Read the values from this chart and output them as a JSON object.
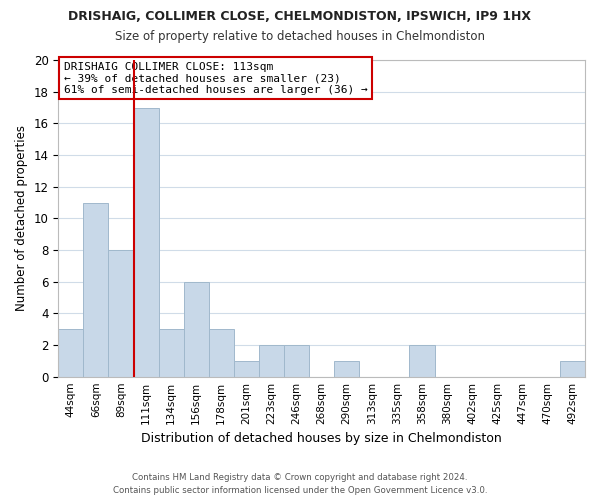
{
  "title1": "DRISHAIG, COLLIMER CLOSE, CHELMONDISTON, IPSWICH, IP9 1HX",
  "title2": "Size of property relative to detached houses in Chelmondiston",
  "xlabel": "Distribution of detached houses by size in Chelmondiston",
  "ylabel": "Number of detached properties",
  "bin_labels": [
    "44sqm",
    "66sqm",
    "89sqm",
    "111sqm",
    "134sqm",
    "156sqm",
    "178sqm",
    "201sqm",
    "223sqm",
    "246sqm",
    "268sqm",
    "290sqm",
    "313sqm",
    "335sqm",
    "358sqm",
    "380sqm",
    "402sqm",
    "425sqm",
    "447sqm",
    "470sqm",
    "492sqm"
  ],
  "values": [
    3,
    11,
    8,
    17,
    3,
    6,
    3,
    1,
    2,
    2,
    0,
    1,
    0,
    0,
    2,
    0,
    0,
    0,
    0,
    0,
    1
  ],
  "bar_color": "#c8d8e8",
  "bar_edge_color": "#a0b8cc",
  "vline_x_index": 3,
  "vline_color": "#cc0000",
  "annotation_title": "DRISHAIG COLLIMER CLOSE: 113sqm",
  "annotation_line1": "← 39% of detached houses are smaller (23)",
  "annotation_line2": "61% of semi-detached houses are larger (36) →",
  "annotation_box_color": "#ffffff",
  "annotation_box_edge_color": "#cc0000",
  "ylim": [
    0,
    20
  ],
  "yticks": [
    0,
    2,
    4,
    6,
    8,
    10,
    12,
    14,
    16,
    18,
    20
  ],
  "footer1": "Contains HM Land Registry data © Crown copyright and database right 2024.",
  "footer2": "Contains public sector information licensed under the Open Government Licence v3.0.",
  "bg_color": "#ffffff",
  "grid_color": "#d0dce8"
}
